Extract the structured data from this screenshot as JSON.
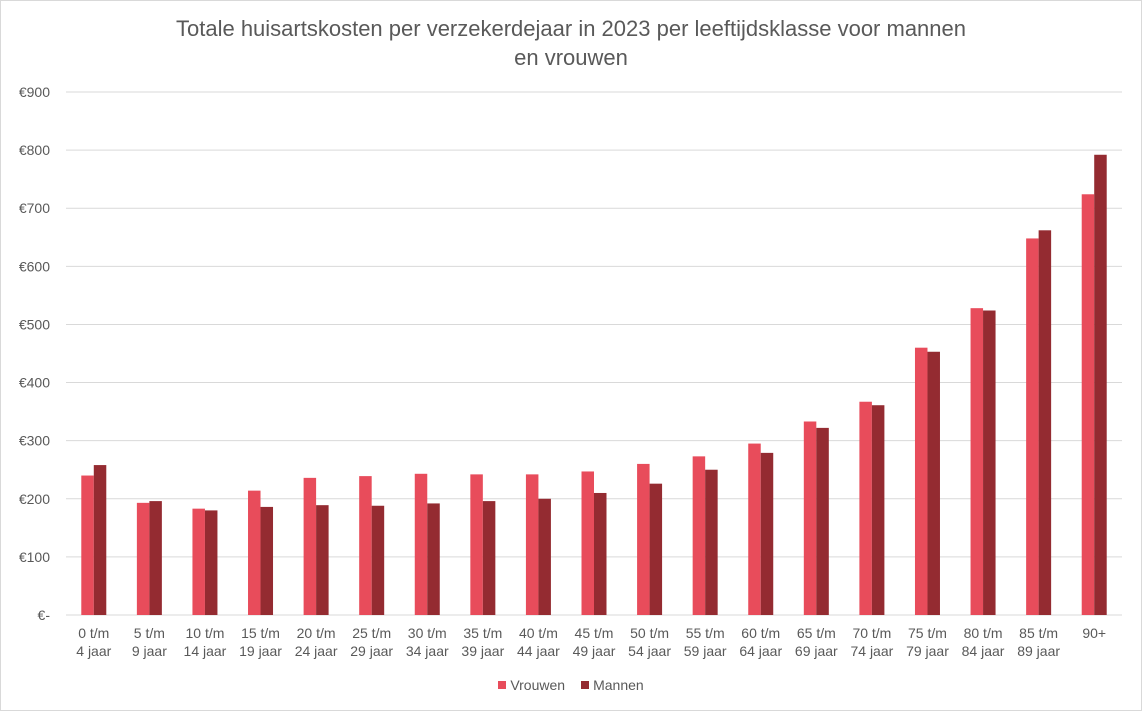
{
  "chart_data": {
    "type": "bar",
    "title_line1": "Totale huisartskosten per verzekerdejaar in 2023 per leeftijdsklasse voor mannen",
    "title_line2": "en vrouwen",
    "ylim": [
      0,
      900
    ],
    "ytick_values": [
      0,
      100,
      200,
      300,
      400,
      500,
      600,
      700,
      800,
      900
    ],
    "ytick_labels": [
      "€-",
      "€100",
      "€200",
      "€300",
      "€400",
      "€500",
      "€600",
      "€700",
      "€800",
      "€900"
    ],
    "grid": true,
    "legend_position": "bottom",
    "categories": [
      [
        "0 t/m",
        "4 jaar"
      ],
      [
        "5 t/m",
        "9 jaar"
      ],
      [
        "10 t/m",
        "14 jaar"
      ],
      [
        "15 t/m",
        "19 jaar"
      ],
      [
        "20 t/m",
        "24 jaar"
      ],
      [
        "25 t/m",
        "29 jaar"
      ],
      [
        "30 t/m",
        "34 jaar"
      ],
      [
        "35 t/m",
        "39 jaar"
      ],
      [
        "40 t/m",
        "44 jaar"
      ],
      [
        "45 t/m",
        "49 jaar"
      ],
      [
        "50 t/m",
        "54 jaar"
      ],
      [
        "55 t/m",
        "59 jaar"
      ],
      [
        "60 t/m",
        "64 jaar"
      ],
      [
        "65 t/m",
        "69 jaar"
      ],
      [
        "70 t/m",
        "74 jaar"
      ],
      [
        "75 t/m",
        "79 jaar"
      ],
      [
        "80 t/m",
        "84 jaar"
      ],
      [
        "85 t/m",
        "89 jaar"
      ],
      [
        "90+"
      ]
    ],
    "series": [
      {
        "name": "Vrouwen",
        "color": "#e84c5b",
        "values": [
          240,
          193,
          183,
          214,
          236,
          239,
          243,
          242,
          242,
          247,
          260,
          273,
          295,
          333,
          367,
          460,
          528,
          648,
          724
        ]
      },
      {
        "name": "Mannen",
        "color": "#942b31",
        "values": [
          258,
          196,
          180,
          186,
          189,
          188,
          192,
          196,
          200,
          210,
          226,
          250,
          279,
          322,
          361,
          453,
          524,
          662,
          792
        ]
      }
    ]
  }
}
